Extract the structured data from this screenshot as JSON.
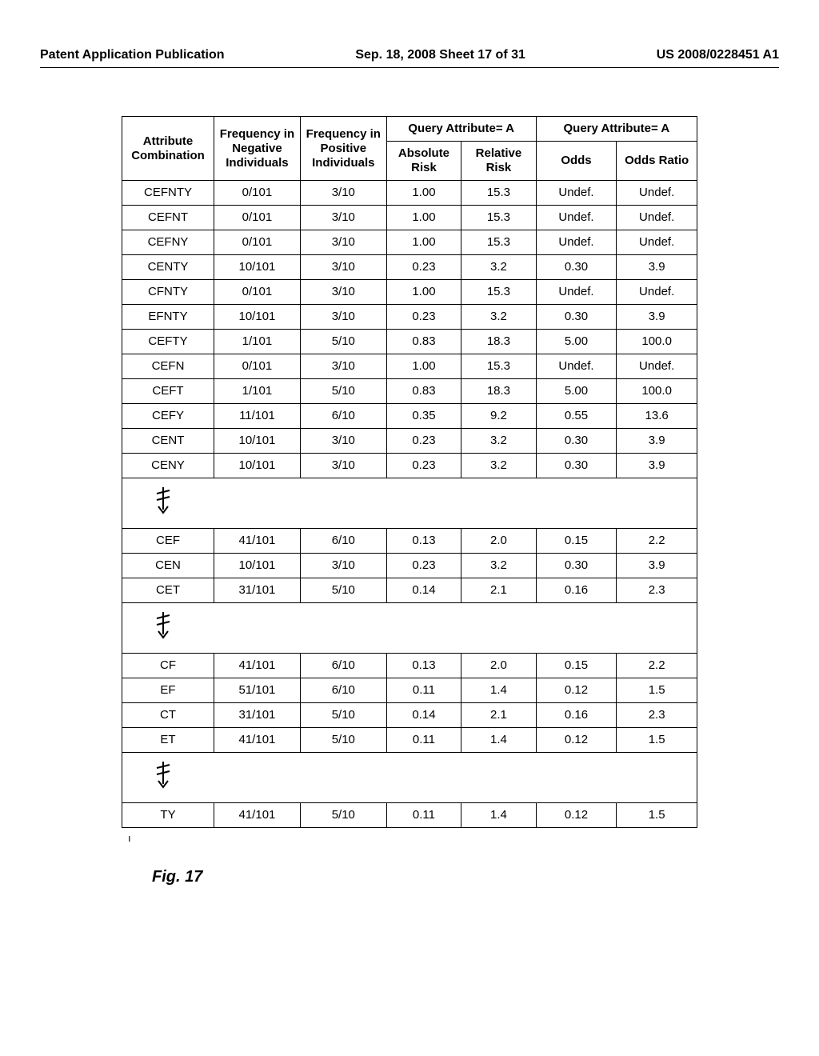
{
  "header": {
    "left": "Patent Application Publication",
    "center": "Sep. 18, 2008  Sheet 17 of 31",
    "right": "US 2008/0228451 A1"
  },
  "table": {
    "columns": {
      "attr": "Attribute Combination",
      "neg": "Frequency in Negative Individuals",
      "pos": "Frequency in Positive Individuals",
      "query_a_span": "Query Attribute= A",
      "query_a_span2": "Query Attribute= A",
      "abs": "Absolute Risk",
      "rel": "Relative Risk",
      "odds": "Odds",
      "oddsr": "Odds Ratio"
    },
    "rows1": [
      [
        "CEFNTY",
        "0/101",
        "3/10",
        "1.00",
        "15.3",
        "Undef.",
        "Undef."
      ],
      [
        "CEFNT",
        "0/101",
        "3/10",
        "1.00",
        "15.3",
        "Undef.",
        "Undef."
      ],
      [
        "CEFNY",
        "0/101",
        "3/10",
        "1.00",
        "15.3",
        "Undef.",
        "Undef."
      ],
      [
        "CENTY",
        "10/101",
        "3/10",
        "0.23",
        "3.2",
        "0.30",
        "3.9"
      ],
      [
        "CFNTY",
        "0/101",
        "3/10",
        "1.00",
        "15.3",
        "Undef.",
        "Undef."
      ],
      [
        "EFNTY",
        "10/101",
        "3/10",
        "0.23",
        "3.2",
        "0.30",
        "3.9"
      ],
      [
        "CEFTY",
        "1/101",
        "5/10",
        "0.83",
        "18.3",
        "5.00",
        "100.0"
      ],
      [
        "CEFN",
        "0/101",
        "3/10",
        "1.00",
        "15.3",
        "Undef.",
        "Undef."
      ],
      [
        "CEFT",
        "1/101",
        "5/10",
        "0.83",
        "18.3",
        "5.00",
        "100.0"
      ],
      [
        "CEFY",
        "11/101",
        "6/10",
        "0.35",
        "9.2",
        "0.55",
        "13.6"
      ],
      [
        "CENT",
        "10/101",
        "3/10",
        "0.23",
        "3.2",
        "0.30",
        "3.9"
      ],
      [
        "CENY",
        "10/101",
        "3/10",
        "0.23",
        "3.2",
        "0.30",
        "3.9"
      ]
    ],
    "rows2": [
      [
        "CEF",
        "41/101",
        "6/10",
        "0.13",
        "2.0",
        "0.15",
        "2.2"
      ],
      [
        "CEN",
        "10/101",
        "3/10",
        "0.23",
        "3.2",
        "0.30",
        "3.9"
      ],
      [
        "CET",
        "31/101",
        "5/10",
        "0.14",
        "2.1",
        "0.16",
        "2.3"
      ]
    ],
    "rows3": [
      [
        "CF",
        "41/101",
        "6/10",
        "0.13",
        "2.0",
        "0.15",
        "2.2"
      ],
      [
        "EF",
        "51/101",
        "6/10",
        "0.11",
        "1.4",
        "0.12",
        "1.5"
      ],
      [
        "CT",
        "31/101",
        "5/10",
        "0.14",
        "2.1",
        "0.16",
        "2.3"
      ],
      [
        "ET",
        "41/101",
        "5/10",
        "0.11",
        "1.4",
        "0.12",
        "1.5"
      ]
    ],
    "rows4": [
      [
        "TY",
        "41/101",
        "5/10",
        "0.11",
        "1.4",
        "0.12",
        "1.5"
      ]
    ]
  },
  "figure_label": "Fig. 17",
  "subscript": "ı"
}
